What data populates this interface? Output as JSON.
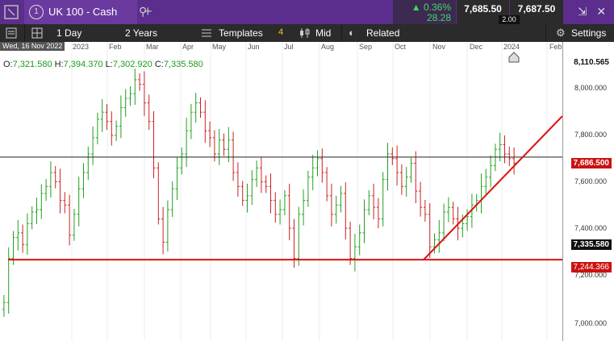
{
  "header": {
    "tab_number": "1",
    "instrument": "UK 100 - Cash",
    "change_pct": "▲ 0.36%",
    "change_pts": "28.28",
    "sell_price": "7,685.50",
    "buy_price": "7,687.50",
    "spread": "2.00"
  },
  "toolbar": {
    "interval": "1 Day",
    "range": "2 Years",
    "templates": "Templates",
    "templates_count": "4",
    "price_type": "Mid",
    "related": "Related",
    "settings": "Settings"
  },
  "chart_info": {
    "date": "Wed, 16 Nov 2022",
    "open_label": "O:",
    "open": "7,321.580",
    "high_label": "H:",
    "high": "7,394.370",
    "low_label": "L:",
    "low": "7,302.920",
    "close_label": "C:",
    "close": "7,335.580"
  },
  "chart_data": {
    "type": "candlestick",
    "x_labels": [
      "2023",
      "Feb",
      "Mar",
      "Apr",
      "May",
      "Jun",
      "Jul",
      "Aug",
      "Sep",
      "Oct",
      "Nov",
      "Dec",
      "2024",
      "Feb"
    ],
    "y_ticks": [
      "8,000.000",
      "7,800.000",
      "7,600.000",
      "7,400.000",
      "7,200.000",
      "7,000.000"
    ],
    "ylim": [
      6960,
      8110
    ],
    "price_tags": {
      "top": "8,110.565",
      "current": "7,686.500",
      "close": "7,335.580",
      "support": "7,244.366"
    },
    "closes": [
      7060,
      7250,
      7340,
      7360,
      7310,
      7400,
      7450,
      7460,
      7530,
      7560,
      7620,
      7580,
      7500,
      7480,
      7350,
      7440,
      7550,
      7620,
      7700,
      7770,
      7850,
      7880,
      7840,
      7780,
      7820,
      7900,
      7940,
      7960,
      8020,
      8000,
      7920,
      7840,
      7640,
      7420,
      7320,
      7460,
      7550,
      7640,
      7700,
      7800,
      7880,
      7920,
      7880,
      7800,
      7770,
      7700,
      7760,
      7720,
      7760,
      7620,
      7560,
      7500,
      7520,
      7590,
      7640,
      7580,
      7560,
      7500,
      7440,
      7460,
      7520,
      7380,
      7250,
      7440,
      7500,
      7600,
      7640,
      7680,
      7620,
      7520,
      7440,
      7480,
      7530,
      7380,
      7250,
      7300,
      7360,
      7460,
      7520,
      7470,
      7420,
      7590,
      7700,
      7680,
      7620,
      7560,
      7600,
      7660,
      7540,
      7470,
      7440,
      7300,
      7330,
      7360,
      7450,
      7470,
      7420,
      7380,
      7400,
      7430,
      7480,
      7500,
      7560,
      7600,
      7650,
      7720,
      7740,
      7700,
      7680,
      7660
    ]
  },
  "lines": {
    "support_level": 7244.366,
    "current_level": 7686.5
  }
}
